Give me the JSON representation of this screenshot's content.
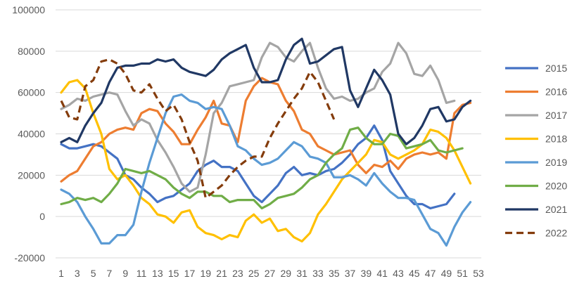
{
  "chart_data": {
    "type": "line",
    "title": "",
    "xlabel": "",
    "ylabel": "",
    "ylim": [
      -20000,
      100000
    ],
    "xlim": [
      1,
      53
    ],
    "yticks": [
      -20000,
      0,
      20000,
      40000,
      60000,
      80000,
      100000
    ],
    "xticks": [
      1,
      3,
      5,
      7,
      9,
      11,
      13,
      15,
      17,
      19,
      21,
      23,
      25,
      27,
      29,
      31,
      33,
      35,
      37,
      39,
      41,
      43,
      45,
      47,
      49,
      51,
      53
    ],
    "grid": "horizontal",
    "legend_position": "right",
    "series": [
      {
        "name": "2015",
        "color": "#4472C4",
        "dash": "solid",
        "values": [
          35000,
          33000,
          33000,
          34000,
          35000,
          34000,
          31000,
          28000,
          20000,
          18000,
          14000,
          11000,
          7000,
          9000,
          10000,
          13000,
          16000,
          22000,
          25000,
          27000,
          24000,
          24000,
          22000,
          16000,
          10000,
          7000,
          11000,
          15000,
          21000,
          24000,
          20000,
          21000,
          20000,
          22000,
          23000,
          26000,
          30000,
          35000,
          38000,
          44000,
          37000,
          22000,
          16000,
          10000,
          6000,
          6000,
          4000,
          5000,
          6000,
          11000
        ]
      },
      {
        "name": "2016",
        "color": "#ED7D31",
        "dash": "solid",
        "values": [
          17000,
          20000,
          22000,
          28000,
          34000,
          36000,
          40000,
          42000,
          43000,
          42000,
          50000,
          52000,
          51000,
          45000,
          41000,
          35000,
          35000,
          42000,
          48000,
          56000,
          45000,
          44000,
          36000,
          56000,
          63000,
          67000,
          65000,
          64000,
          56000,
          51000,
          42000,
          40000,
          34000,
          32000,
          30000,
          31000,
          32000,
          25000,
          21000,
          25000,
          24000,
          27000,
          23000,
          28000,
          30000,
          31000,
          30000,
          31000,
          28000,
          50000,
          54000,
          55000
        ]
      },
      {
        "name": "2017",
        "color": "#A5A5A5",
        "dash": "solid",
        "values": [
          52000,
          54000,
          57000,
          56000,
          58000,
          59000,
          60000,
          59000,
          51000,
          44000,
          47000,
          45000,
          37000,
          31000,
          24000,
          16000,
          12000,
          14000,
          30000,
          50000,
          55000,
          63000,
          64000,
          65000,
          66000,
          77000,
          84000,
          82000,
          77000,
          75000,
          80000,
          84000,
          72000,
          62000,
          57000,
          58000,
          56000,
          57000,
          60000,
          62000,
          70000,
          74000,
          84000,
          79000,
          69000,
          68000,
          73000,
          66000,
          55000,
          56000
        ]
      },
      {
        "name": "2018",
        "color": "#FFC000",
        "dash": "solid",
        "values": [
          60000,
          65000,
          66000,
          62000,
          50000,
          40000,
          23000,
          18000,
          20000,
          15000,
          9000,
          6000,
          1000,
          0,
          -3000,
          2000,
          3000,
          -5000,
          -8000,
          -9000,
          -11000,
          -9000,
          -10000,
          -2000,
          1000,
          -3000,
          -1000,
          -7000,
          -6000,
          -10000,
          -12000,
          -8000,
          1000,
          6000,
          12000,
          18000,
          22000,
          26000,
          30000,
          37000,
          36000,
          30000,
          28000,
          30000,
          32000,
          35000,
          42000,
          41000,
          38000,
          32000,
          24000,
          16000
        ]
      },
      {
        "name": "2019",
        "color": "#5B9BD5",
        "dash": "solid",
        "values": [
          13000,
          11000,
          7000,
          0,
          -6000,
          -13000,
          -13000,
          -9000,
          -9000,
          -4000,
          12000,
          26000,
          38000,
          50000,
          58000,
          59000,
          56000,
          55000,
          52000,
          53000,
          52000,
          44000,
          34000,
          32000,
          28000,
          25000,
          26000,
          28000,
          32000,
          36000,
          34000,
          29000,
          28000,
          26000,
          19000,
          19000,
          20000,
          18000,
          15000,
          21000,
          16000,
          12000,
          9000,
          9000,
          8000,
          1000,
          -6000,
          -8000,
          -14000,
          -5000,
          2000,
          7000
        ]
      },
      {
        "name": "2020",
        "color": "#70AD47",
        "dash": "solid",
        "values": [
          6000,
          7000,
          9000,
          8000,
          9000,
          7000,
          11000,
          16000,
          23000,
          22000,
          21000,
          22000,
          20000,
          18000,
          14000,
          11000,
          9000,
          12000,
          12000,
          10000,
          10000,
          7000,
          8000,
          8000,
          8000,
          4000,
          6000,
          9000,
          10000,
          11000,
          14000,
          18000,
          20000,
          26000,
          30000,
          33000,
          42000,
          43000,
          38000,
          35000,
          35000,
          40000,
          39000,
          33000,
          34000,
          35000,
          37000,
          32000,
          31000,
          32000,
          33000
        ]
      },
      {
        "name": "2021",
        "color": "#203864",
        "dash": "solid",
        "values": [
          36000,
          38000,
          36000,
          44000,
          50000,
          55000,
          65000,
          72000,
          73000,
          73000,
          74000,
          74000,
          76000,
          75000,
          76000,
          72000,
          70000,
          69000,
          68000,
          71000,
          76000,
          79000,
          81000,
          83000,
          72000,
          65000,
          65000,
          66000,
          76000,
          83000,
          86000,
          74000,
          75000,
          78000,
          81000,
          82000,
          61000,
          53000,
          62000,
          71000,
          66000,
          59000,
          40000,
          35000,
          38000,
          44000,
          52000,
          53000,
          46000,
          47000,
          53000,
          56000
        ]
      },
      {
        "name": "2022",
        "color": "#843C0C",
        "dash": "dash",
        "values": [
          56000,
          48000,
          47000,
          63000,
          66000,
          75000,
          76000,
          74000,
          69000,
          61000,
          60000,
          64000,
          57000,
          51000,
          54000,
          47000,
          36000,
          27000,
          9000,
          12000,
          15000,
          20000,
          24000,
          27000,
          29000,
          29000,
          38000,
          45000,
          51000,
          57000,
          62000,
          70000,
          65000,
          56000,
          47000
        ]
      }
    ]
  }
}
